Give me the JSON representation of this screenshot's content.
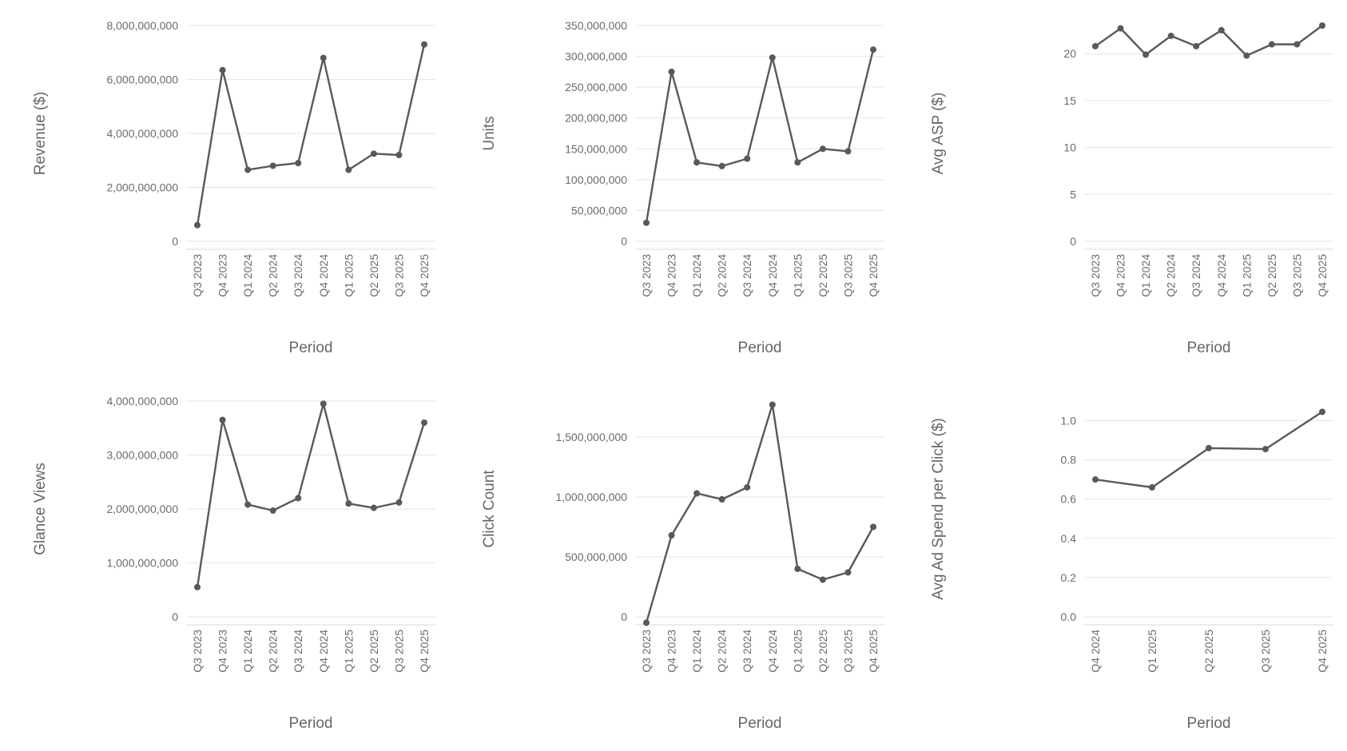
{
  "chart_data": [
    {
      "type": "line",
      "title": "",
      "xlabel": "Period",
      "ylabel": "Revenue ($)",
      "categories": [
        "Q3 2023",
        "Q4 2023",
        "Q1 2024",
        "Q2 2024",
        "Q3 2024",
        "Q4 2024",
        "Q1 2025",
        "Q2 2025",
        "Q3 2025",
        "Q4 2025"
      ],
      "series": [
        {
          "values": [
            600000000,
            6350000000,
            2650000000,
            2800000000,
            2900000000,
            6800000000,
            2650000000,
            3250000000,
            3200000000,
            7300000000
          ]
        }
      ],
      "ylim": [
        0,
        8000000000
      ],
      "yticks": [
        0,
        2000000000,
        4000000000,
        6000000000,
        8000000000
      ],
      "ytick_labels": [
        "0",
        "2,000,000,000",
        "4,000,000,000",
        "6,000,000,000",
        "8,000,000,000"
      ],
      "grid": true,
      "color": "#595959"
    },
    {
      "type": "line",
      "title": "",
      "xlabel": "Period",
      "ylabel": "Units",
      "categories": [
        "Q3 2023",
        "Q4 2023",
        "Q1 2024",
        "Q2 2024",
        "Q3 2024",
        "Q4 2024",
        "Q1 2025",
        "Q2 2025",
        "Q3 2025",
        "Q4 2025"
      ],
      "series": [
        {
          "values": [
            30000000,
            275000000,
            128000000,
            122000000,
            134000000,
            298000000,
            128000000,
            150000000,
            146000000,
            311000000
          ]
        }
      ],
      "ylim": [
        0,
        350000000
      ],
      "yticks": [
        0,
        50000000,
        100000000,
        150000000,
        200000000,
        250000000,
        300000000,
        350000000
      ],
      "ytick_labels": [
        "0",
        "50,000,000",
        "100,000,000",
        "150,000,000",
        "200,000,000",
        "250,000,000",
        "300,000,000",
        "350,000,000"
      ],
      "grid": true,
      "color": "#595959"
    },
    {
      "type": "line",
      "title": "",
      "xlabel": "Period",
      "ylabel": "Avg ASP ($)",
      "categories": [
        "Q3 2023",
        "Q4 2023",
        "Q1 2024",
        "Q2 2024",
        "Q3 2024",
        "Q4 2024",
        "Q1 2025",
        "Q2 2025",
        "Q3 2025",
        "Q4 2025"
      ],
      "series": [
        {
          "values": [
            20.8,
            22.7,
            19.9,
            21.9,
            20.8,
            22.5,
            19.8,
            21.0,
            21.0,
            23.0
          ]
        }
      ],
      "ylim": [
        0,
        23
      ],
      "yticks": [
        0,
        5,
        10,
        15,
        20
      ],
      "ytick_labels": [
        "0",
        "5",
        "10",
        "15",
        "20"
      ],
      "grid": true,
      "color": "#595959"
    },
    {
      "type": "line",
      "title": "",
      "xlabel": "Period",
      "ylabel": "Glance Views",
      "categories": [
        "Q3 2023",
        "Q4 2023",
        "Q1 2024",
        "Q2 2024",
        "Q3 2024",
        "Q4 2024",
        "Q1 2025",
        "Q2 2025",
        "Q3 2025",
        "Q4 2025"
      ],
      "series": [
        {
          "values": [
            550000000,
            3650000000,
            2080000000,
            1970000000,
            2200000000,
            3950000000,
            2100000000,
            2020000000,
            2120000000,
            3600000000
          ]
        }
      ],
      "ylim": [
        0,
        4000000000
      ],
      "yticks": [
        0,
        1000000000,
        2000000000,
        3000000000,
        4000000000
      ],
      "ytick_labels": [
        "0",
        "1,000,000,000",
        "2,000,000,000",
        "3,000,000,000",
        "4,000,000,000"
      ],
      "grid": true,
      "color": "#595959"
    },
    {
      "type": "line",
      "title": "",
      "xlabel": "Period",
      "ylabel": "Click Count",
      "categories": [
        "Q3 2023",
        "Q4 2023",
        "Q1 2024",
        "Q2 2024",
        "Q3 2024",
        "Q4 2024",
        "Q1 2025",
        "Q2 2025",
        "Q3 2025",
        "Q4 2025"
      ],
      "series": [
        {
          "values": [
            -50000000,
            680000000,
            1030000000,
            980000000,
            1080000000,
            1770000000,
            400000000,
            310000000,
            370000000,
            750000000
          ]
        }
      ],
      "ylim": [
        0,
        1800000000
      ],
      "yticks": [
        0,
        500000000,
        1000000000,
        1500000000
      ],
      "ytick_labels": [
        "0",
        "500,000,000",
        "1,000,000,000",
        "1,500,000,000"
      ],
      "grid": true,
      "color": "#595959"
    },
    {
      "type": "line",
      "title": "",
      "xlabel": "Period",
      "ylabel": "Avg Ad Spend per Click ($)",
      "categories": [
        "Q4 2024",
        "Q1 2025",
        "Q2 2025",
        "Q3 2025",
        "Q4 2025"
      ],
      "series": [
        {
          "values": [
            0.7,
            0.66,
            0.86,
            0.855,
            1.045
          ]
        }
      ],
      "ylim": [
        0,
        1.1
      ],
      "yticks": [
        0,
        0.2,
        0.4,
        0.6,
        0.8,
        1.0
      ],
      "ytick_labels": [
        "0.0",
        "0.2",
        "0.4",
        "0.6",
        "0.8",
        "1.0"
      ],
      "grid": true,
      "color": "#595959"
    }
  ]
}
